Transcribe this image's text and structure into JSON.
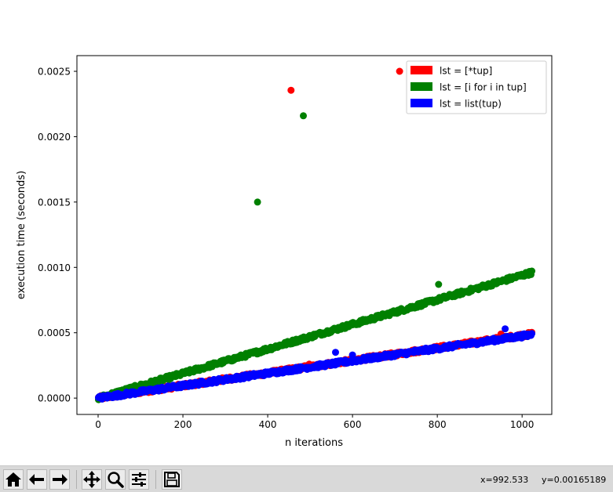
{
  "chart_data": {
    "type": "scatter",
    "xlabel": "n iterations",
    "ylabel": "execution time (seconds)",
    "xlim": [
      -50,
      1070
    ],
    "ylim": [
      -0.000125,
      0.00262
    ],
    "xticks": [
      0,
      200,
      400,
      600,
      800,
      1000
    ],
    "xtick_labels": [
      "0",
      "200",
      "400",
      "600",
      "800",
      "1000"
    ],
    "yticks": [
      0.0,
      0.0005,
      0.001,
      0.0015,
      0.002,
      0.0025
    ],
    "ytick_labels": [
      "0.0000",
      "0.0005",
      "0.0010",
      "0.0015",
      "0.0020",
      "0.0025"
    ],
    "grid": false,
    "legend_position": "upper right",
    "series": [
      {
        "name": "lst = [*tup]",
        "color": "#ff0000",
        "trend": {
          "slope": 4.8e-07,
          "intercept": 0.0,
          "x_max": 1024
        },
        "outliers": [
          [
            455,
            0.002355
          ],
          [
            711,
            0.0025
          ],
          [
            240,
            0.00012
          ],
          [
            498,
            0.00026
          ],
          [
            950,
            0.00049
          ]
        ]
      },
      {
        "name": "lst = [i for i in tup]",
        "color": "#008000",
        "trend": {
          "slope": 9.4e-07,
          "intercept": 0.0,
          "x_max": 1024
        },
        "outliers": [
          [
            376,
            0.0015
          ],
          [
            484,
            0.00216
          ],
          [
            803,
            0.00087
          ]
        ]
      },
      {
        "name": "lst = list(tup)",
        "color": "#0000ff",
        "trend": {
          "slope": 4.75e-07,
          "intercept": 0.0,
          "x_max": 1024
        },
        "outliers": [
          [
            560,
            0.00035
          ],
          [
            218,
            0.00011
          ],
          [
            600,
            0.00033
          ],
          [
            960,
            0.00053
          ]
        ]
      }
    ]
  },
  "toolbar": {
    "buttons": [
      "home-icon",
      "back-icon",
      "forward-icon",
      "pan-icon",
      "zoom-icon",
      "configure-icon",
      "save-icon"
    ],
    "coord_x": "x=992.533",
    "coord_y": "y=0.00165189"
  }
}
